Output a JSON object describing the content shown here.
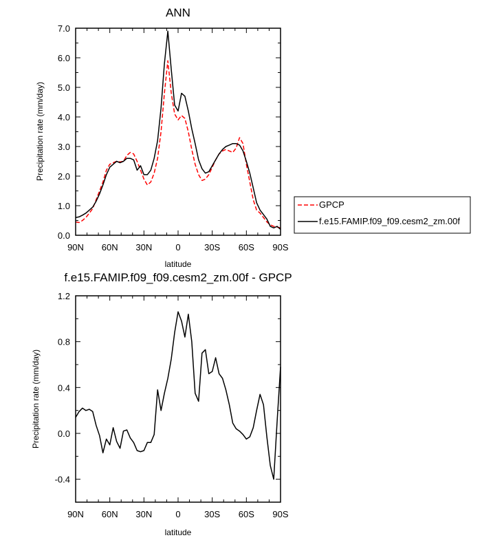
{
  "chart_data": [
    {
      "type": "line",
      "title": "ANN",
      "xlabel": "latitude",
      "ylabel": "Precipitation rate (mm/day)",
      "xlim": [
        90,
        -90
      ],
      "ylim": [
        0,
        7
      ],
      "x_ticks": [
        90,
        60,
        30,
        0,
        -30,
        -60,
        -90
      ],
      "x_tick_labels": [
        "90N",
        "60N",
        "30N",
        "0",
        "30S",
        "60S",
        "90S"
      ],
      "y_ticks": [
        0,
        1,
        2,
        3,
        4,
        5,
        6,
        7
      ],
      "y_tick_labels": [
        "0.0",
        "1.0",
        "2.0",
        "3.0",
        "4.0",
        "5.0",
        "6.0",
        "7.0"
      ],
      "legend": [
        "GPCP",
        "f.e15.FAMIP.f09_f09.cesm2_zm.00f"
      ],
      "series": [
        {
          "name": "GPCP",
          "color": "#ff0000",
          "dash": true,
          "x": [
            90,
            87,
            84,
            81,
            78,
            75,
            72,
            69,
            66,
            63,
            60,
            57,
            54,
            51,
            48,
            45,
            42,
            39,
            36,
            33,
            30,
            27,
            24,
            21,
            18,
            15,
            12,
            9,
            6,
            3,
            0,
            -3,
            -6,
            -9,
            -12,
            -15,
            -18,
            -21,
            -24,
            -27,
            -30,
            -33,
            -36,
            -39,
            -42,
            -45,
            -48,
            -51,
            -54,
            -57,
            -60,
            -63,
            -66,
            -69,
            -72,
            -75,
            -78,
            -81,
            -84,
            -87,
            -90
          ],
          "values": [
            0.45,
            0.43,
            0.5,
            0.6,
            0.75,
            0.9,
            1.2,
            1.5,
            1.8,
            2.2,
            2.4,
            2.45,
            2.5,
            2.48,
            2.5,
            2.7,
            2.8,
            2.75,
            2.5,
            2.2,
            1.9,
            1.7,
            1.8,
            2.1,
            2.6,
            3.5,
            4.8,
            5.9,
            4.8,
            4.1,
            3.9,
            4.05,
            3.95,
            3.5,
            2.9,
            2.4,
            2.05,
            1.85,
            1.9,
            2.05,
            2.3,
            2.55,
            2.75,
            2.85,
            2.9,
            2.85,
            2.8,
            2.95,
            3.3,
            3.1,
            2.4,
            1.8,
            1.2,
            0.85,
            0.75,
            0.6,
            0.45,
            0.35,
            0.3,
            0.28,
            0.25
          ]
        },
        {
          "name": "f.e15.FAMIP.f09_f09.cesm2_zm.00f",
          "color": "#000000",
          "dash": false,
          "x": [
            90,
            87,
            84,
            81,
            78,
            75,
            72,
            69,
            66,
            63,
            60,
            57,
            54,
            51,
            48,
            45,
            42,
            39,
            36,
            33,
            30,
            27,
            24,
            21,
            18,
            15,
            12,
            9,
            6,
            3,
            0,
            -3,
            -6,
            -9,
            -12,
            -15,
            -18,
            -21,
            -24,
            -27,
            -30,
            -33,
            -36,
            -39,
            -42,
            -45,
            -48,
            -51,
            -54,
            -57,
            -60,
            -63,
            -66,
            -69,
            -72,
            -75,
            -78,
            -81,
            -84,
            -87,
            -90
          ],
          "values": [
            0.6,
            0.62,
            0.68,
            0.75,
            0.85,
            0.95,
            1.15,
            1.4,
            1.7,
            2.05,
            2.3,
            2.4,
            2.5,
            2.45,
            2.5,
            2.6,
            2.6,
            2.55,
            2.2,
            2.35,
            2.05,
            2.05,
            2.2,
            2.6,
            3.2,
            4.3,
            5.8,
            6.9,
            5.6,
            4.4,
            4.2,
            4.8,
            4.7,
            4.2,
            3.6,
            3.1,
            2.55,
            2.25,
            2.1,
            2.15,
            2.35,
            2.55,
            2.75,
            2.9,
            3.0,
            3.05,
            3.1,
            3.1,
            3.05,
            2.85,
            2.5,
            2.1,
            1.6,
            1.1,
            0.85,
            0.7,
            0.55,
            0.3,
            0.25,
            0.3,
            0.2
          ]
        }
      ]
    },
    {
      "type": "line",
      "title": "f.e15.FAMIP.f09_f09.cesm2_zm.00f - GPCP",
      "xlabel": "latitude",
      "ylabel": "Precipitation rate (mm/day)",
      "xlim": [
        90,
        -90
      ],
      "ylim": [
        -0.6,
        1.2
      ],
      "x_ticks": [
        90,
        60,
        30,
        0,
        -30,
        -60,
        -90
      ],
      "x_tick_labels": [
        "90N",
        "60N",
        "30N",
        "0",
        "30S",
        "60S",
        "90S"
      ],
      "y_ticks": [
        -0.4,
        0,
        0.4,
        0.8,
        1.2
      ],
      "y_tick_labels": [
        "-0.4",
        "0.0",
        "0.4",
        "0.8",
        "1.2"
      ],
      "series": [
        {
          "name": "f.e15.FAMIP.f09_f09.cesm2_zm.00f - GPCP",
          "color": "#000000",
          "dash": false,
          "x": [
            90,
            87,
            84,
            81,
            78,
            75,
            72,
            69,
            66,
            63,
            60,
            57,
            54,
            51,
            48,
            45,
            42,
            39,
            36,
            33,
            30,
            27,
            24,
            21,
            18,
            15,
            12,
            9,
            6,
            3,
            0,
            -3,
            -6,
            -9,
            -12,
            -15,
            -18,
            -21,
            -24,
            -27,
            -30,
            -33,
            -36,
            -39,
            -42,
            -45,
            -48,
            -51,
            -54,
            -57,
            -60,
            -63,
            -66,
            -69,
            -72,
            -75,
            -78,
            -81,
            -84,
            -87,
            -90
          ],
          "values": [
            0.14,
            0.19,
            0.22,
            0.2,
            0.21,
            0.19,
            0.07,
            -0.02,
            -0.17,
            -0.05,
            -0.1,
            0.05,
            -0.07,
            -0.13,
            0.02,
            0.03,
            -0.04,
            -0.08,
            -0.15,
            -0.16,
            -0.15,
            -0.08,
            -0.08,
            -0.01,
            0.38,
            0.2,
            0.35,
            0.48,
            0.65,
            0.88,
            1.06,
            0.98,
            0.84,
            1.04,
            0.8,
            0.35,
            0.28,
            0.7,
            0.73,
            0.52,
            0.54,
            0.66,
            0.52,
            0.48,
            0.38,
            0.25,
            0.09,
            0.04,
            0.02,
            -0.01,
            -0.05,
            -0.03,
            0.05,
            0.2,
            0.34,
            0.25,
            -0.03,
            -0.28,
            -0.4,
            0.1,
            0.58
          ]
        }
      ]
    }
  ]
}
